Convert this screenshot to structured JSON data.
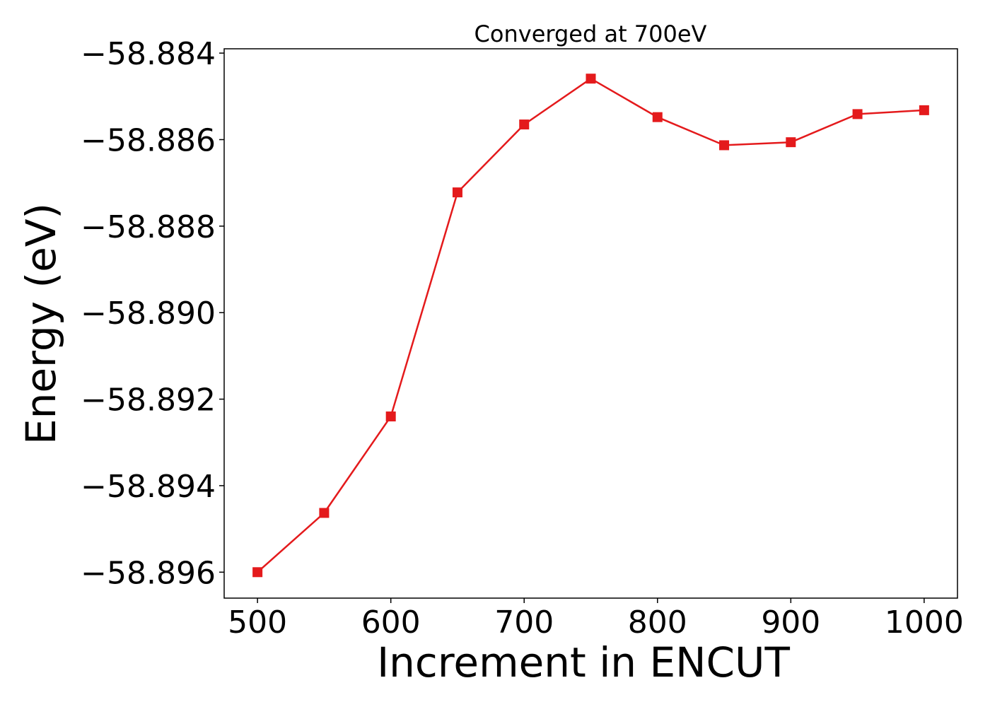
{
  "chart_data": {
    "type": "line",
    "title": "Converged at 700eV",
    "xlabel": "Increment in ENCUT",
    "ylabel": "Energy (eV)",
    "xlim": [
      475,
      1025
    ],
    "ylim": [
      -58.8966,
      -58.8839
    ],
    "xticks": [
      500,
      600,
      700,
      800,
      900,
      1000
    ],
    "xtick_labels": [
      "500",
      "600",
      "700",
      "800",
      "900",
      "1000"
    ],
    "yticks": [
      -58.884,
      -58.886,
      -58.888,
      -58.89,
      -58.892,
      -58.894,
      -58.896
    ],
    "ytick_labels": [
      "−58.884",
      "−58.886",
      "−58.888",
      "−58.890",
      "−58.892",
      "−58.894",
      "−58.896"
    ],
    "grid": false,
    "series": [
      {
        "color": "#e41a1c",
        "marker": "square",
        "x": [
          500,
          550,
          600,
          650,
          700,
          750,
          800,
          850,
          900,
          950,
          1000
        ],
        "y": [
          -58.896,
          -58.89463,
          -58.8924,
          -58.88722,
          -58.88565,
          -58.88459,
          -58.88548,
          -58.88613,
          -58.88606,
          -58.88541,
          -58.88532
        ]
      }
    ]
  }
}
